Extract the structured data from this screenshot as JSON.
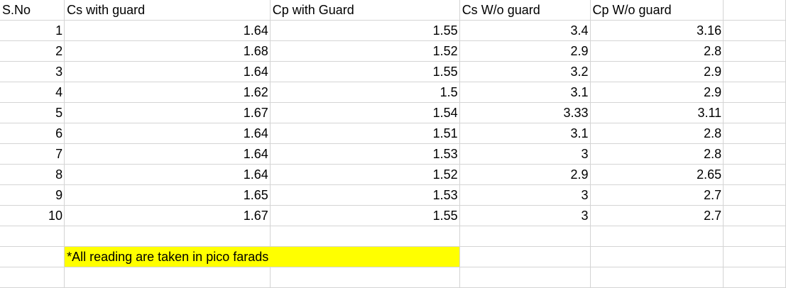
{
  "headers": [
    "S.No",
    "Cs with guard",
    "Cp with Guard",
    "Cs W/o guard",
    "Cp W/o guard"
  ],
  "rows": [
    [
      "1",
      "1.64",
      "1.55",
      "3.4",
      "3.16"
    ],
    [
      "2",
      "1.68",
      "1.52",
      "2.9",
      "2.8"
    ],
    [
      "3",
      "1.64",
      "1.55",
      "3.2",
      "2.9"
    ],
    [
      "4",
      "1.62",
      "1.5",
      "3.1",
      "2.9"
    ],
    [
      "5",
      "1.67",
      "1.54",
      "3.33",
      "3.11"
    ],
    [
      "6",
      "1.64",
      "1.51",
      "3.1",
      "2.8"
    ],
    [
      "7",
      "1.64",
      "1.53",
      "3",
      "2.8"
    ],
    [
      "8",
      "1.64",
      "1.52",
      "2.9",
      "2.65"
    ],
    [
      "9",
      "1.65",
      "1.53",
      "3",
      "2.7"
    ],
    [
      "10",
      "1.67",
      "1.55",
      "3",
      "2.7"
    ]
  ],
  "note": "*All reading are taken in pico farads",
  "colors": {
    "highlight": "#ffff00",
    "gridline": "#d4d4d4"
  }
}
